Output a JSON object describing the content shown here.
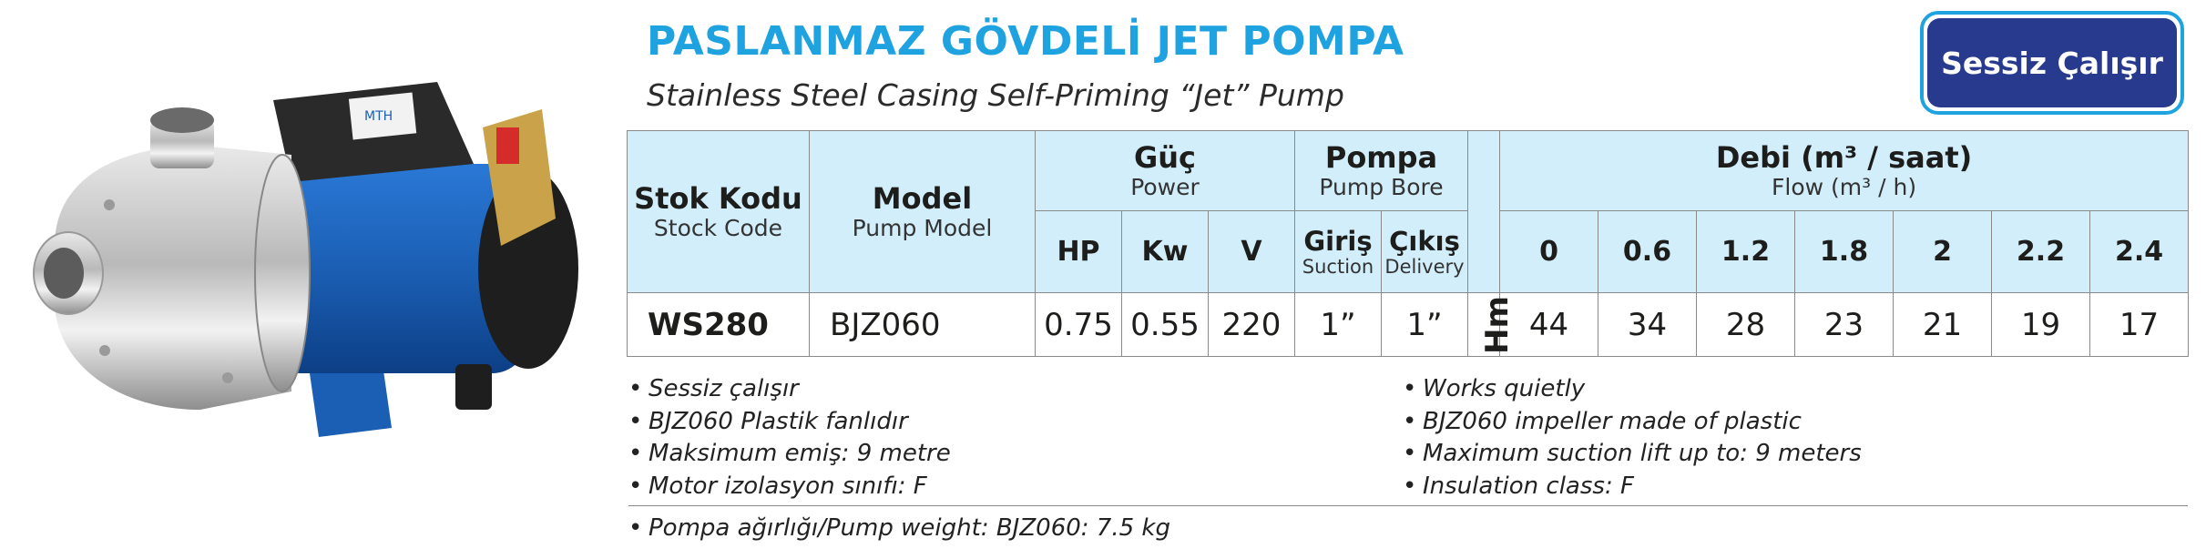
{
  "header": {
    "title": "PASLANMAZ GÖVDELİ JET POMPA",
    "subtitle": "Stainless Steel Casing Self-Priming “Jet” Pump",
    "badge": "Sessiz Çalışır"
  },
  "table": {
    "stock_code_tr": "Stok Kodu",
    "stock_code_en": "Stock Code",
    "model_tr": "Model",
    "model_en": "Pump Model",
    "power_tr": "Güç",
    "power_en": "Power",
    "bore_tr": "Pompa",
    "bore_en": "Pump Bore",
    "flow_tr": "Debi (m³ / saat)",
    "flow_en": "Flow (m³ / h)",
    "hp": "HP",
    "kw": "Kw",
    "v": "V",
    "inlet_tr": "Giriş",
    "inlet_en": "Suction",
    "outlet_tr": "Çıkış",
    "outlet_en": "Delivery",
    "flow_values": [
      "0",
      "0.6",
      "1.2",
      "1.8",
      "2",
      "2.2",
      "2.4"
    ],
    "hm": "Hm",
    "row": {
      "stock": "WS280",
      "model": "BJZ060",
      "hp": "0.75",
      "kw": "0.55",
      "v": "220",
      "inlet": "1”",
      "outlet": "1”",
      "heads": [
        "44",
        "34",
        "28",
        "23",
        "21",
        "19",
        "17"
      ]
    }
  },
  "features_tr": [
    "Sessiz çalışır",
    "BJZ060 Plastik fanlıdır",
    "Maksimum emiş: 9 metre",
    "Motor izolasyon sınıfı: F"
  ],
  "features_en": [
    "Works quietly",
    "BJZ060 impeller made of plastic",
    "Maximum suction lift up to: 9 meters",
    "Insulation class: F"
  ],
  "footnote": "Pompa ağırlığı/Pump weight: BJZ060: 7.5 kg",
  "product_image": {
    "label": "MTH"
  },
  "colors": {
    "title": "#1fa2e0",
    "badge": "#273a8d",
    "header_fill": "#d2eefb",
    "motor": "#1b5fb4"
  }
}
